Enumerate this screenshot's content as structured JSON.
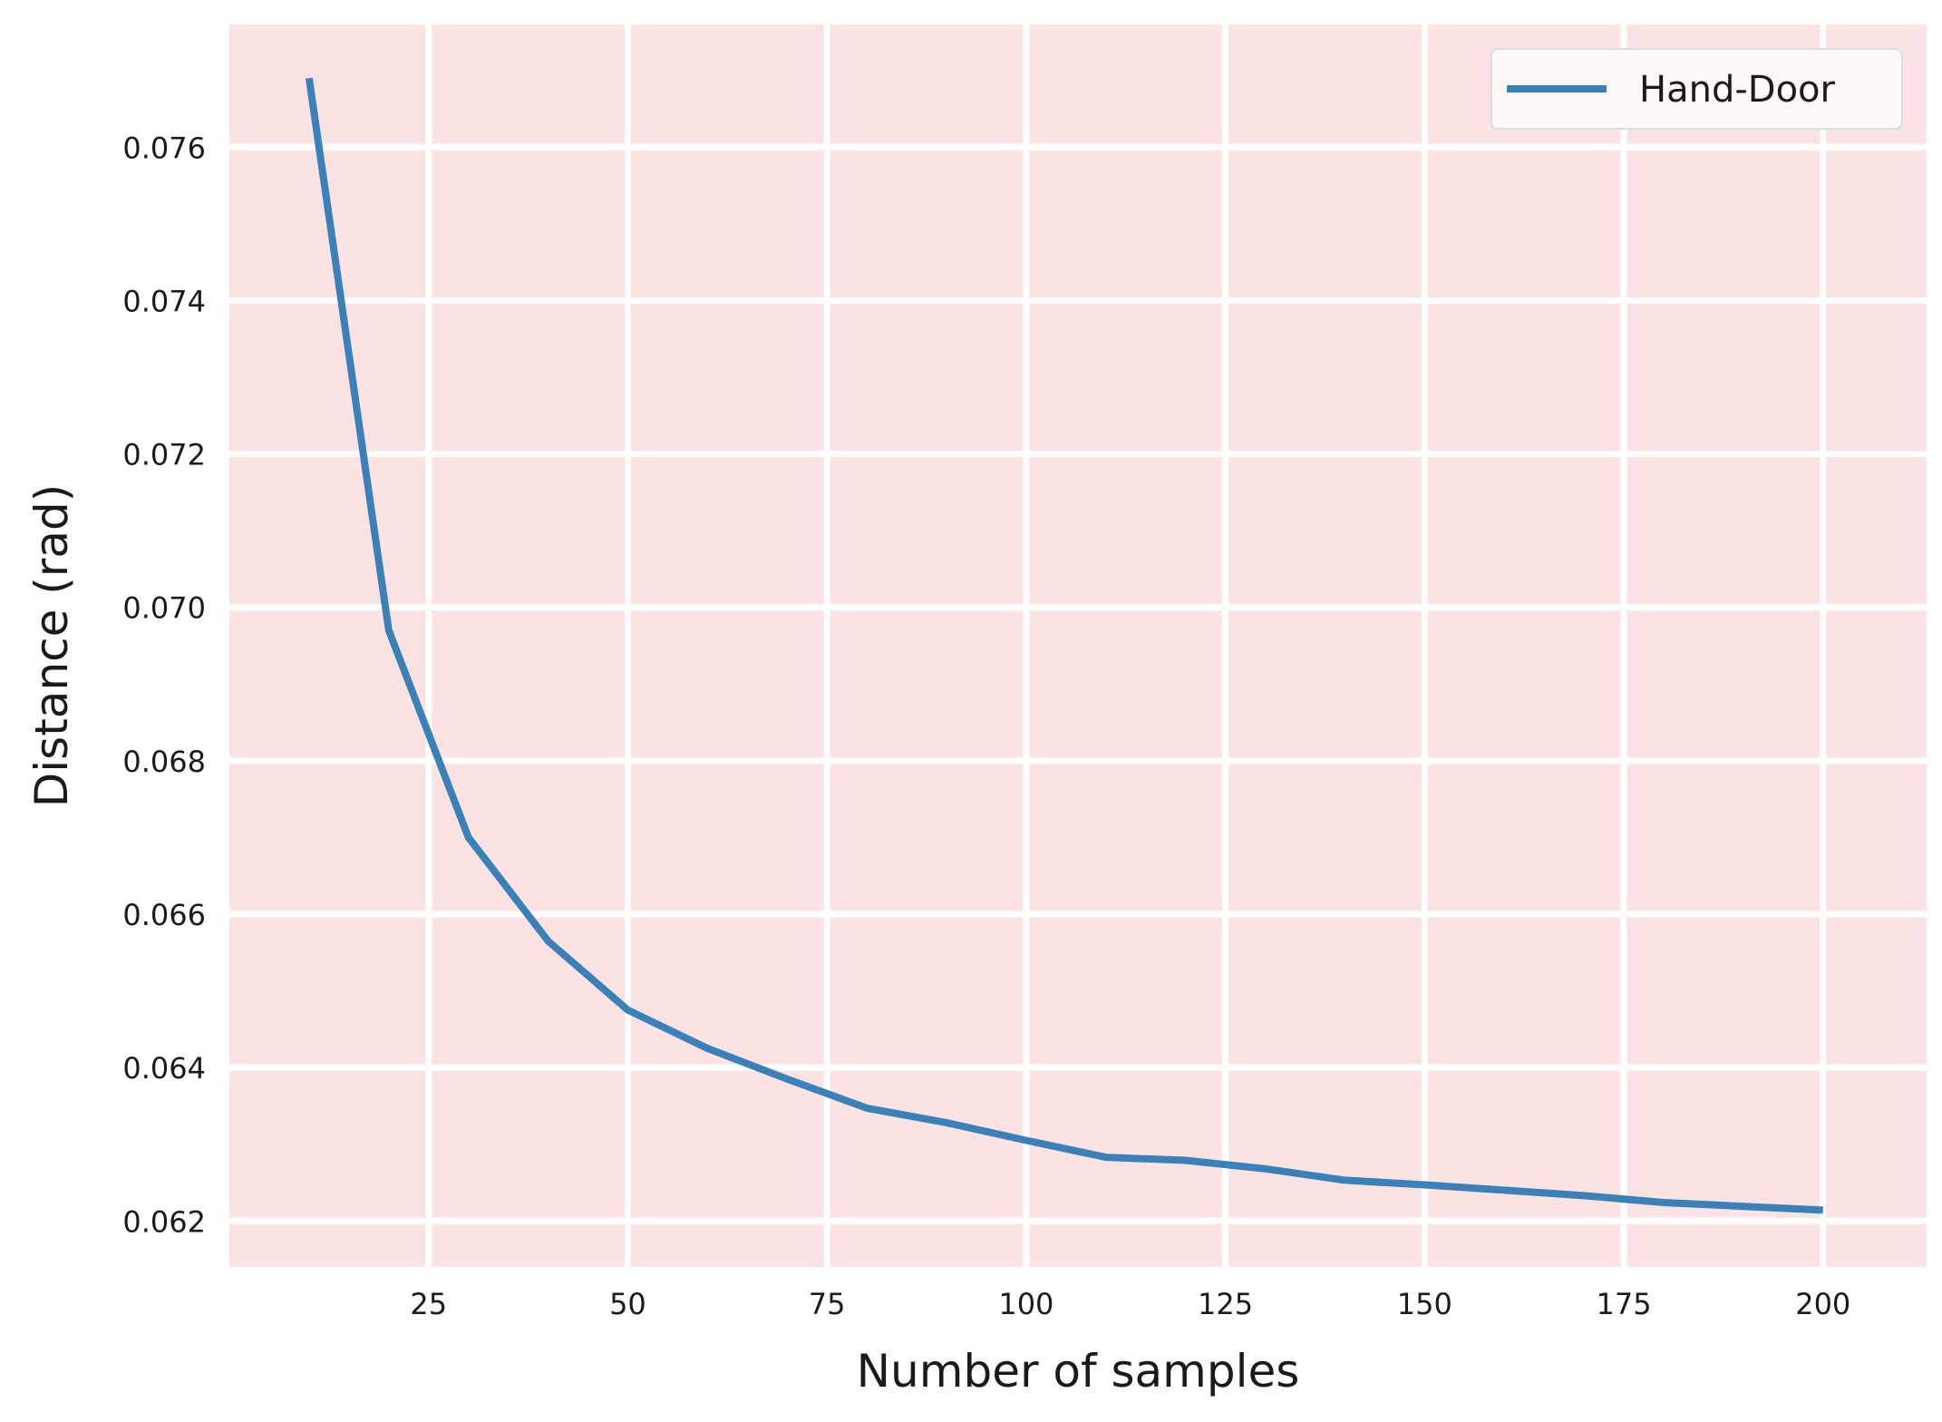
{
  "chart_data": {
    "type": "line",
    "title": "",
    "xlabel": "Number of samples",
    "ylabel": "Distance (rad)",
    "xlim": [
      0,
      213
    ],
    "ylim": [
      0.0614,
      0.0776
    ],
    "x_ticks": [
      25,
      50,
      75,
      100,
      125,
      150,
      175,
      200
    ],
    "x_tick_labels": [
      "25",
      "50",
      "75",
      "100",
      "125",
      "150",
      "175",
      "200"
    ],
    "y_ticks": [
      0.062,
      0.064,
      0.066,
      0.068,
      0.07,
      0.072,
      0.074,
      0.076
    ],
    "y_tick_labels": [
      "0.062",
      "0.064",
      "0.066",
      "0.068",
      "0.070",
      "0.072",
      "0.074",
      "0.076"
    ],
    "grid": true,
    "background_color": "#fbe3e4",
    "grid_color": "#ffffff",
    "legend_position": "top-right",
    "series": [
      {
        "name": "Hand-Door",
        "color": "#3a80b9",
        "x": [
          10,
          20,
          30,
          40,
          50,
          60,
          70,
          80,
          90,
          100,
          110,
          120,
          130,
          140,
          150,
          160,
          170,
          180,
          190,
          200
        ],
        "y": [
          0.0769,
          0.0697,
          0.067,
          0.06565,
          0.06475,
          0.06425,
          0.06385,
          0.06347,
          0.06328,
          0.06305,
          0.06283,
          0.06279,
          0.06268,
          0.06253,
          0.06247,
          0.0624,
          0.06233,
          0.06224,
          0.06219,
          0.06214
        ]
      }
    ]
  }
}
